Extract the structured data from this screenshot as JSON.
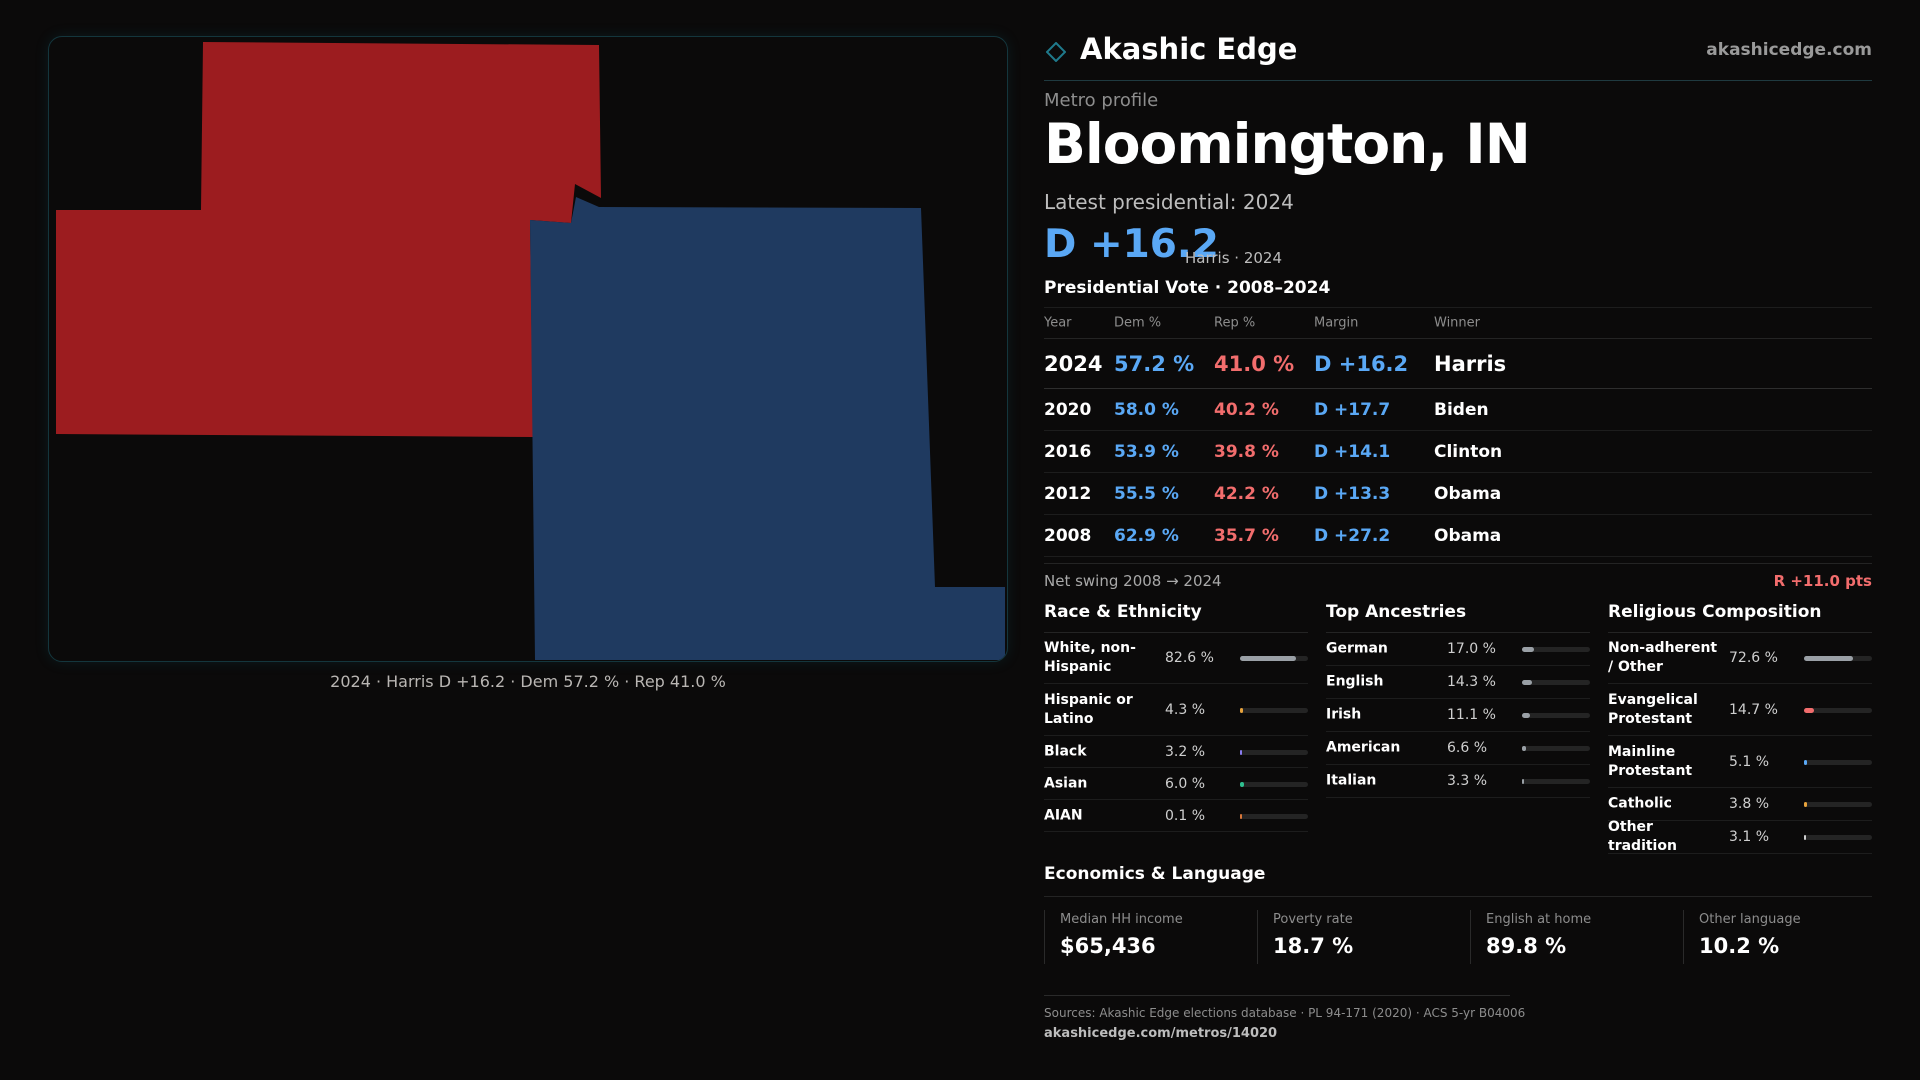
{
  "brand": {
    "name": "Akashic Edge",
    "site": "akashicedge.com",
    "accent": "#1f7a8c"
  },
  "profile": {
    "eyebrow": "Metro profile",
    "city": "Bloomington, IN",
    "latest_label": "Latest presidential: 2024",
    "latest_margin": "D +16.2",
    "latest_sub": "Harris · 2024"
  },
  "map": {
    "caption": "2024 · Harris D +16.2 · Dem 57.2 % · Rep 41.0 %",
    "colors": {
      "rep": "#9c1c1f",
      "dem": "#1f3a60"
    }
  },
  "vote_table": {
    "title": "Presidential Vote · 2008–2024",
    "headers": [
      "Year",
      "Dem %",
      "Rep %",
      "Margin",
      "Winner"
    ],
    "rows": [
      {
        "year": "2024",
        "dem": "57.2 %",
        "rep": "41.0 %",
        "margin": "D +16.2",
        "winner": "Harris"
      },
      {
        "year": "2020",
        "dem": "58.0 %",
        "rep": "40.2 %",
        "margin": "D +17.7",
        "winner": "Biden"
      },
      {
        "year": "2016",
        "dem": "53.9 %",
        "rep": "39.8 %",
        "margin": "D +14.1",
        "winner": "Clinton"
      },
      {
        "year": "2012",
        "dem": "55.5 %",
        "rep": "42.2 %",
        "margin": "D +13.3",
        "winner": "Obama"
      },
      {
        "year": "2008",
        "dem": "62.9 %",
        "rep": "35.7 %",
        "margin": "D +27.2",
        "winner": "Obama"
      }
    ],
    "swing_label": "Net swing 2008 → 2024",
    "swing_value": "R +11.0 pts"
  },
  "race": {
    "title": "Race & Ethnicity",
    "rows": [
      {
        "label": "White, non-Hispanic",
        "value": "82.6 %",
        "pct": 82.6,
        "color": "#9aa0a6"
      },
      {
        "label": "Hispanic or Latino",
        "value": "4.3 %",
        "pct": 4.3,
        "color": "#e6a23c"
      },
      {
        "label": "Black",
        "value": "3.2 %",
        "pct": 3.2,
        "color": "#8a7cf0"
      },
      {
        "label": "Asian",
        "value": "6.0 %",
        "pct": 6.0,
        "color": "#2fbf8f"
      },
      {
        "label": "AIAN",
        "value": "0.1 %",
        "pct": 0.1,
        "color": "#d9773a"
      }
    ]
  },
  "ancestry": {
    "title": "Top Ancestries",
    "rows": [
      {
        "label": "German",
        "value": "17.0 %",
        "pct": 17.0,
        "color": "#9aa0a6"
      },
      {
        "label": "English",
        "value": "14.3 %",
        "pct": 14.3,
        "color": "#9aa0a6"
      },
      {
        "label": "Irish",
        "value": "11.1 %",
        "pct": 11.1,
        "color": "#9aa0a6"
      },
      {
        "label": "American",
        "value": "6.6 %",
        "pct": 6.6,
        "color": "#9aa0a6"
      },
      {
        "label": "Italian",
        "value": "3.3 %",
        "pct": 3.3,
        "color": "#9aa0a6"
      }
    ]
  },
  "religion": {
    "title": "Religious Composition",
    "rows": [
      {
        "label": "Non-adherent / Other",
        "value": "72.6 %",
        "pct": 72.6,
        "color": "#9aa0a6"
      },
      {
        "label": "Evangelical Protestant",
        "value": "14.7 %",
        "pct": 14.7,
        "color": "#f26d6d"
      },
      {
        "label": "Mainline Protestant",
        "value": "5.1 %",
        "pct": 5.1,
        "color": "#5aa8f5"
      },
      {
        "label": "Catholic",
        "value": "3.8 %",
        "pct": 3.8,
        "color": "#e6a23c"
      },
      {
        "label": "Other tradition",
        "value": "3.1 %",
        "pct": 3.1,
        "color": "#cfcfcf"
      }
    ]
  },
  "economics": {
    "title": "Economics & Language",
    "items": [
      {
        "label": "Median HH income",
        "value": "$65,436"
      },
      {
        "label": "Poverty rate",
        "value": "18.7 %"
      },
      {
        "label": "English at home",
        "value": "89.8 %"
      },
      {
        "label": "Other language",
        "value": "10.2 %"
      }
    ]
  },
  "footer": {
    "sources": "Sources: Akashic Edge elections database · PL 94-171 (2020) · ACS 5-yr B04006",
    "url": "akashicedge.com/metros/14020"
  }
}
